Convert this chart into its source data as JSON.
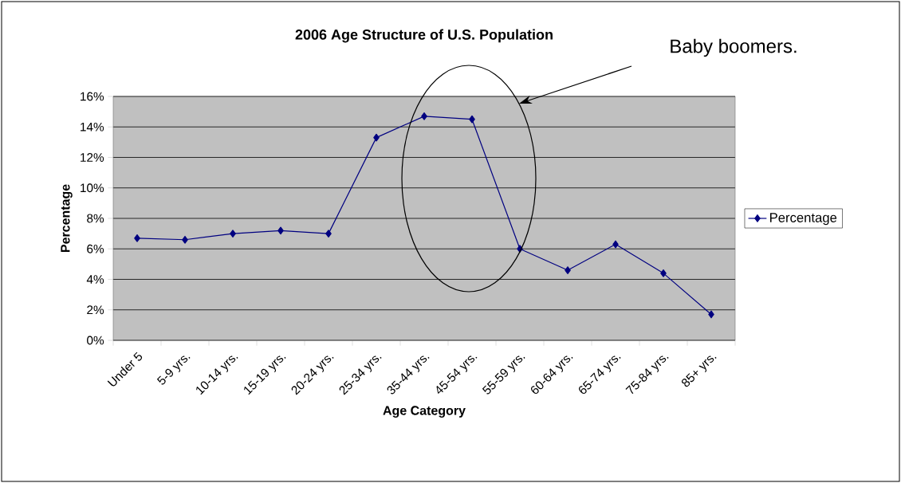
{
  "chart_data": {
    "type": "line",
    "title": "2006 Age Structure of U.S. Population",
    "xlabel": "Age Category",
    "ylabel": "Percentage",
    "categories": [
      "Under 5",
      "5-9 yrs.",
      "10-14 yrs.",
      "15-19 yrs.",
      "20-24 yrs.",
      "25-34 yrs.",
      "35-44 yrs.",
      "45-54 yrs.",
      "55-59 yrs.",
      "60-64 yrs.",
      "65-74 yrs.",
      "75-84 yrs.",
      "85+ yrs."
    ],
    "series": [
      {
        "name": "Percentage",
        "color": "#000080",
        "values": [
          6.7,
          6.6,
          7.0,
          7.2,
          7.0,
          13.3,
          14.7,
          14.5,
          6.0,
          4.6,
          6.3,
          4.4,
          1.7
        ]
      }
    ],
    "ylim": [
      0,
      16
    ],
    "yticks": [
      {
        "value": 0,
        "label": "0%"
      },
      {
        "value": 2,
        "label": "2%"
      },
      {
        "value": 4,
        "label": "4%"
      },
      {
        "value": 6,
        "label": "6%"
      },
      {
        "value": 8,
        "label": "8%"
      },
      {
        "value": 10,
        "label": "10%"
      },
      {
        "value": 12,
        "label": "12%"
      },
      {
        "value": 14,
        "label": "14%"
      },
      {
        "value": 16,
        "label": "16%"
      }
    ],
    "grid": "y",
    "legend": "right",
    "marker": "diamond",
    "line_style": "solid",
    "annotations": [
      "Baby boomers."
    ]
  }
}
